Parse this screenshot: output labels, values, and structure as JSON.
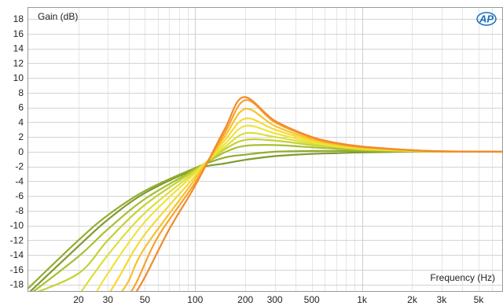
{
  "logo_text": "AP",
  "chart_data": {
    "type": "line",
    "title": "",
    "ylabel": "Gain (dB)",
    "xlabel": "Frequency (Hz)",
    "xscale": "log",
    "xlim": [
      10,
      7000
    ],
    "ylim": [
      -19,
      19.5
    ],
    "x_ticks": [
      20,
      30,
      50,
      100,
      200,
      300,
      500,
      1000,
      2000,
      3000,
      5000
    ],
    "x_tick_labels": [
      "20",
      "30",
      "50",
      "100",
      "200",
      "300",
      "500",
      "1k",
      "2k",
      "3k",
      "5k"
    ],
    "y_ticks": [
      18,
      16,
      14,
      12,
      10,
      8,
      6,
      4,
      2,
      0,
      -2,
      -4,
      -6,
      -8,
      -10,
      -12,
      -14,
      -16,
      -18
    ],
    "y_tick_labels": [
      "18",
      "16",
      "14",
      "12",
      "10",
      "8",
      "6",
      "4",
      "2",
      "0",
      "-2",
      "-4",
      "-6",
      "-8",
      "-10",
      "-12",
      "-14",
      "-16",
      "-18"
    ],
    "grid": true,
    "legend": "none",
    "series": [
      {
        "color": "#7f9a2e",
        "x": [
          10,
          20,
          30,
          50,
          100,
          150,
          200,
          300,
          500,
          700,
          1000,
          2000,
          3000,
          5000,
          7000
        ],
        "y": [
          -19.2,
          -12.8,
          -9.2,
          -5.6,
          -2.4,
          -1.6,
          -1.1,
          -0.6,
          -0.3,
          -0.2,
          -0.1,
          0,
          0,
          0,
          0
        ]
      },
      {
        "color": "#93ad2f",
        "x": [
          10,
          20,
          30,
          50,
          100,
          150,
          200,
          300,
          500,
          700,
          1000,
          2000,
          3000,
          5000,
          7000
        ],
        "y": [
          -18.5,
          -12.0,
          -8.6,
          -5.3,
          -2.2,
          -0.8,
          -0.4,
          0.0,
          0.1,
          0.1,
          0.1,
          0,
          0,
          0,
          0
        ]
      },
      {
        "color": "#a9bf31",
        "x": [
          10,
          20,
          30,
          50,
          100,
          150,
          200,
          300,
          500,
          700,
          1000,
          2000,
          3000,
          5000,
          7000
        ],
        "y": [
          -19.5,
          -14.2,
          -10.5,
          -6.4,
          -2.4,
          -0.1,
          0.8,
          0.9,
          0.6,
          0.4,
          0.2,
          0.05,
          0,
          0,
          0
        ]
      },
      {
        "color": "#c3d233",
        "x": [
          10,
          20,
          30,
          50,
          100,
          150,
          200,
          300,
          500,
          700,
          1000,
          2000,
          3000,
          5000,
          7000
        ],
        "y": [
          -19.5,
          -16.5,
          -12.0,
          -7.2,
          -2.5,
          0.3,
          1.6,
          1.5,
          0.9,
          0.6,
          0.3,
          0.1,
          0,
          0,
          0
        ]
      },
      {
        "color": "#dcdf3a",
        "x": [
          20,
          30,
          50,
          100,
          150,
          200,
          300,
          500,
          700,
          1000,
          2000,
          3000,
          5000,
          7000
        ],
        "y": [
          -19.5,
          -14.0,
          -8.3,
          -2.7,
          0.6,
          2.5,
          2.0,
          1.1,
          0.7,
          0.4,
          0.1,
          0.05,
          0,
          0
        ]
      },
      {
        "color": "#efe33c",
        "x": [
          25,
          30,
          50,
          100,
          150,
          200,
          300,
          500,
          700,
          1000,
          2000,
          3000,
          5000,
          7000
        ],
        "y": [
          -19.5,
          -16.5,
          -9.5,
          -2.9,
          1.0,
          3.5,
          2.5,
          1.3,
          0.8,
          0.4,
          0.1,
          0.05,
          0,
          0
        ]
      },
      {
        "color": "#f7d932",
        "x": [
          30,
          35,
          50,
          100,
          150,
          200,
          300,
          500,
          700,
          1000,
          2000,
          3000,
          5000,
          7000
        ],
        "y": [
          -19.5,
          -17.0,
          -11.2,
          -3.3,
          1.5,
          4.5,
          3.0,
          1.5,
          0.9,
          0.5,
          0.15,
          0.05,
          0,
          0
        ]
      },
      {
        "color": "#f8c22c",
        "x": [
          35,
          40,
          50,
          100,
          150,
          200,
          300,
          500,
          700,
          1000,
          2000,
          3000,
          5000,
          7000
        ],
        "y": [
          -19.5,
          -17.5,
          -13.0,
          -3.7,
          2.0,
          5.8,
          3.5,
          1.7,
          1.0,
          0.6,
          0.2,
          0.05,
          0,
          0
        ]
      },
      {
        "color": "#f7a32a",
        "x": [
          40,
          45,
          60,
          100,
          150,
          200,
          300,
          500,
          700,
          1000,
          2000,
          3000,
          5000,
          7000
        ],
        "y": [
          -19.5,
          -17.5,
          -11.5,
          -4.2,
          2.5,
          7.0,
          4.0,
          1.9,
          1.1,
          0.6,
          0.2,
          0.05,
          0,
          0
        ]
      },
      {
        "color": "#f28a2b",
        "x": [
          43,
          50,
          70,
          100,
          150,
          195,
          300,
          500,
          700,
          1000,
          2000,
          3000,
          5000,
          7000
        ],
        "y": [
          -19.5,
          -17.0,
          -10.5,
          -4.6,
          3.0,
          7.4,
          4.2,
          2.0,
          1.2,
          0.7,
          0.2,
          0.05,
          0,
          0
        ]
      }
    ]
  }
}
